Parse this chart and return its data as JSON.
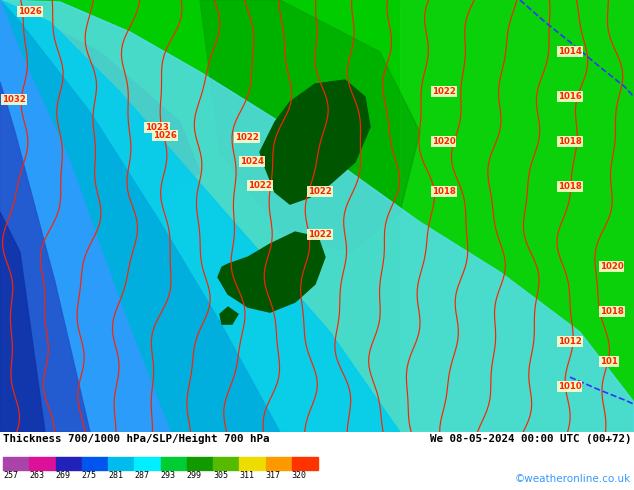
{
  "title_left": "Thickness 700/1000 hPa/SLP/Height 700 hPa",
  "title_right": "We 08-05-2024 00:00 UTC (00+72)",
  "credit": "©weatheronline.co.uk",
  "colorbar_values": [
    257,
    263,
    269,
    275,
    281,
    287,
    293,
    299,
    305,
    311,
    317,
    320
  ],
  "colorbar_colors": [
    "#aa44aa",
    "#dd1199",
    "#2222bb",
    "#0055ee",
    "#00bbee",
    "#00eeff",
    "#00cc33",
    "#119900",
    "#55bb00",
    "#eedd00",
    "#ff9900",
    "#ff3300"
  ],
  "bg_color": "#00cc00",
  "contour_color": "#ff2200",
  "blue_line_color": "#3333ff",
  "yellow_border": "#ffff00",
  "title_color": "#000000",
  "credit_color": "#3399ff",
  "bottom_bg": "#ffffff",
  "slp_labels": [
    [
      18,
      418,
      "1026"
    ],
    [
      2,
      330,
      "1032"
    ],
    [
      240,
      268,
      "1024"
    ],
    [
      248,
      244,
      "1022"
    ],
    [
      235,
      292,
      "1022"
    ],
    [
      145,
      302,
      "1023"
    ],
    [
      153,
      294,
      "1026"
    ],
    [
      308,
      238,
      "1022"
    ],
    [
      308,
      195,
      "1022"
    ],
    [
      432,
      338,
      "1022"
    ],
    [
      432,
      288,
      "1020"
    ],
    [
      432,
      238,
      "1018"
    ],
    [
      558,
      378,
      "1014"
    ],
    [
      558,
      333,
      "1016"
    ],
    [
      558,
      288,
      "1018"
    ],
    [
      558,
      243,
      "1018"
    ],
    [
      558,
      88,
      "1012"
    ],
    [
      558,
      43,
      "1010"
    ],
    [
      600,
      163,
      "1020"
    ],
    [
      600,
      118,
      "1018"
    ],
    [
      600,
      68,
      "101"
    ]
  ]
}
